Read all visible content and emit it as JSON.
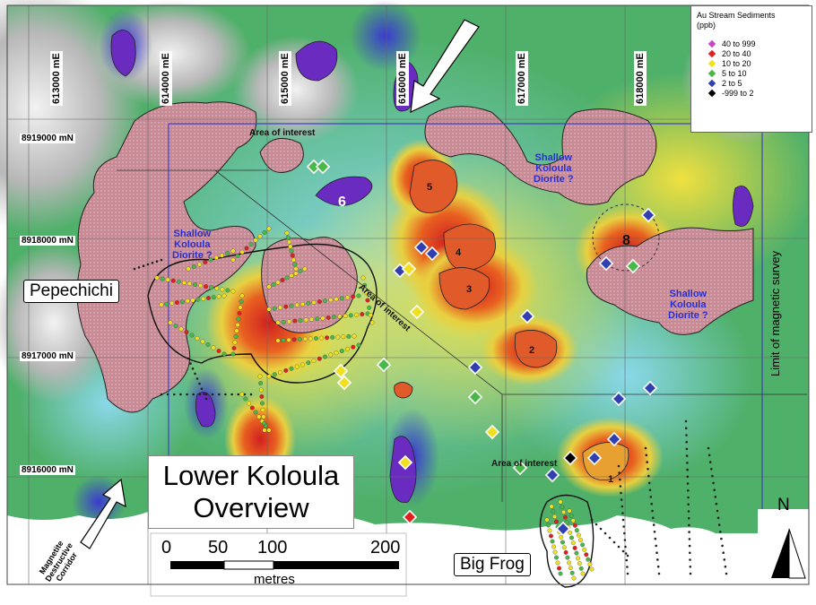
{
  "eastings": [
    "613000 mE",
    "614000 mE",
    "615000 mE",
    "616000 mE",
    "617000 mE",
    "618000 mE"
  ],
  "northings": [
    "8919000 mN",
    "8918000 mN",
    "8917000 mN",
    "8916000 mN"
  ],
  "legend": {
    "title_line1": "Au Stream Sediments",
    "title_line2": "(ppb)",
    "items": [
      {
        "label": "40 to 999",
        "color": "#c844c8"
      },
      {
        "label": "20 to  40",
        "color": "#e02020"
      },
      {
        "label": "10 to  20",
        "color": "#f0e020"
      },
      {
        "label": "5 to  10",
        "color": "#48b848"
      },
      {
        "label": "2 to  5",
        "color": "#3040b0"
      },
      {
        "label": "-999 to  2",
        "color": "#000000"
      }
    ]
  },
  "labels": {
    "area_top": "Area of interest",
    "area_diag": "Area of interest",
    "area_bottom": "Area of interest",
    "diorite_left": [
      "Shallow",
      "Koloula",
      "Diorite ?"
    ],
    "diorite_top": [
      "Shallow",
      "Koloula",
      "Diorite ?"
    ],
    "diorite_right": [
      "Shallow",
      "Koloula",
      "Diorite ?"
    ],
    "pepechichi": "Pepechichi",
    "big_frog": "Big Frog",
    "title_line1": "Lower Koloula",
    "title_line2": "Overview",
    "limit": "Limit of magnetic survey",
    "corridor": [
      "Magnetite",
      "Destructive",
      "Corridor"
    ],
    "north": "N",
    "targets": [
      "1",
      "2",
      "3",
      "4",
      "5",
      "6",
      "8"
    ]
  },
  "scale_bar": {
    "ticks": [
      "0",
      "50",
      "100",
      "200"
    ],
    "unit": "metres"
  }
}
